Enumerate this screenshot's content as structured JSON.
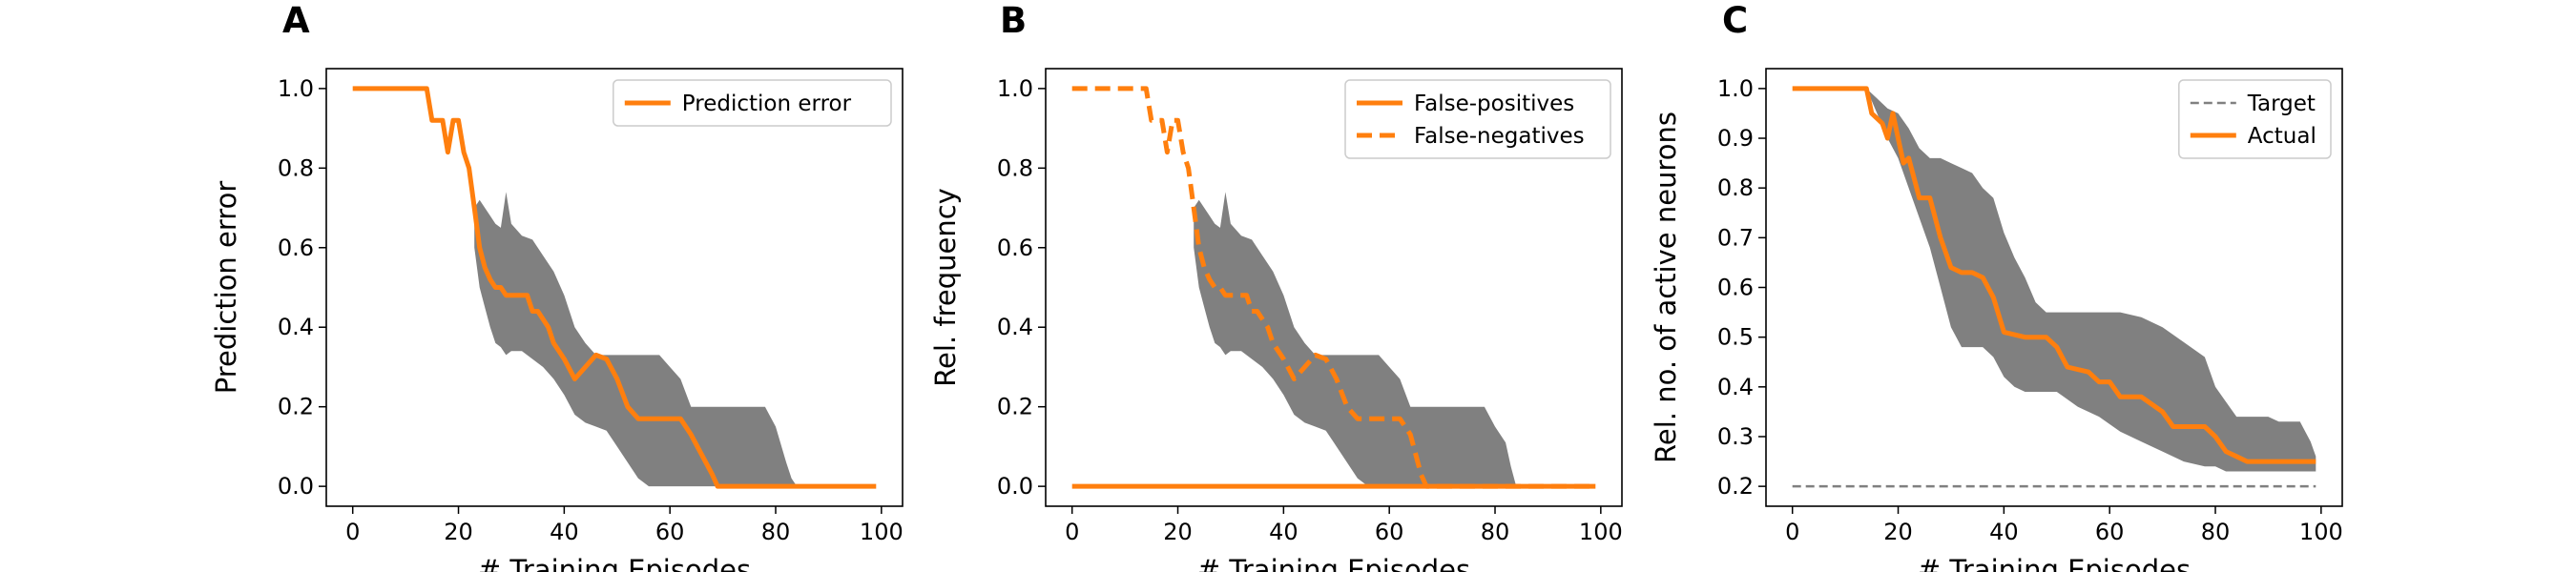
{
  "chart_data": [
    {
      "panel": "A",
      "type": "line",
      "xlabel": "# Training Episodes",
      "ylabel": "Prediction error",
      "xlim": [
        -5,
        104
      ],
      "ylim": [
        -0.05,
        1.05
      ],
      "xticks": [
        0,
        20,
        40,
        60,
        80,
        100
      ],
      "yticks": [
        0.0,
        0.2,
        0.4,
        0.6,
        0.8,
        1.0
      ],
      "ytick_format": 1,
      "legend_position": "upper right",
      "series": [
        {
          "name": "Prediction error",
          "color": "#ff7f0e",
          "dash": "solid",
          "x": [
            0,
            14,
            15,
            17,
            18,
            19,
            20,
            21,
            22,
            23,
            24,
            25,
            26,
            27,
            28,
            29,
            30,
            33,
            34,
            35,
            37,
            38,
            40,
            42,
            44,
            46,
            48,
            50,
            52,
            54,
            60,
            62,
            64,
            66,
            68,
            69,
            70,
            80,
            90,
            99
          ],
          "y": [
            1.0,
            1.0,
            0.92,
            0.92,
            0.84,
            0.92,
            0.92,
            0.84,
            0.8,
            0.7,
            0.6,
            0.55,
            0.52,
            0.5,
            0.5,
            0.48,
            0.48,
            0.48,
            0.44,
            0.44,
            0.4,
            0.36,
            0.32,
            0.27,
            0.3,
            0.33,
            0.32,
            0.27,
            0.2,
            0.17,
            0.17,
            0.17,
            0.13,
            0.08,
            0.03,
            0.0,
            0.0,
            0.0,
            0.0,
            0.0
          ]
        }
      ],
      "bands": [
        {
          "color": "#808080",
          "x": [
            23,
            24,
            25,
            26,
            27,
            28,
            29,
            30,
            32,
            34,
            36,
            38,
            40,
            42,
            44,
            46,
            48,
            50,
            52,
            54,
            56,
            58,
            60,
            62,
            64,
            66,
            68,
            70,
            72,
            74,
            76,
            78,
            80,
            82,
            83,
            84
          ],
          "upper": [
            0.7,
            0.72,
            0.7,
            0.68,
            0.66,
            0.65,
            0.74,
            0.66,
            0.63,
            0.62,
            0.58,
            0.54,
            0.48,
            0.4,
            0.36,
            0.33,
            0.33,
            0.33,
            0.33,
            0.33,
            0.33,
            0.33,
            0.3,
            0.27,
            0.2,
            0.2,
            0.2,
            0.2,
            0.2,
            0.2,
            0.2,
            0.2,
            0.15,
            0.06,
            0.02,
            0.0
          ],
          "lower": [
            0.6,
            0.5,
            0.45,
            0.4,
            0.36,
            0.35,
            0.33,
            0.34,
            0.34,
            0.32,
            0.3,
            0.27,
            0.23,
            0.18,
            0.16,
            0.15,
            0.14,
            0.1,
            0.06,
            0.02,
            0.0,
            0.0,
            0.0,
            0.0,
            0.0,
            0.0,
            0.0,
            0.0,
            0.0,
            0.0,
            0.0,
            0.0,
            0.0,
            0.0,
            0.0,
            0.0
          ]
        }
      ]
    },
    {
      "panel": "B",
      "type": "line",
      "xlabel": "# Training Episodes",
      "ylabel": "Rel. frequency",
      "xlim": [
        -5,
        104
      ],
      "ylim": [
        -0.05,
        1.05
      ],
      "xticks": [
        0,
        20,
        40,
        60,
        80,
        100
      ],
      "yticks": [
        0.0,
        0.2,
        0.4,
        0.6,
        0.8,
        1.0
      ],
      "ytick_format": 1,
      "legend_position": "upper right",
      "series": [
        {
          "name": "False-positives",
          "color": "#ff7f0e",
          "dash": "solid",
          "x": [
            0,
            20,
            40,
            60,
            80,
            99
          ],
          "y": [
            0.0,
            0.0,
            0.0,
            0.0,
            0.0,
            0.0
          ]
        },
        {
          "name": "False-negatives",
          "color": "#ff7f0e",
          "dash": "dashed",
          "x": [
            0,
            14,
            15,
            17,
            18,
            19,
            20,
            21,
            22,
            23,
            24,
            25,
            26,
            27,
            28,
            29,
            30,
            33,
            34,
            35,
            37,
            38,
            40,
            42,
            44,
            46,
            48,
            50,
            52,
            54,
            60,
            62,
            64,
            65,
            66,
            67,
            70,
            80,
            90,
            99
          ],
          "y": [
            1.0,
            1.0,
            0.92,
            0.92,
            0.84,
            0.92,
            0.92,
            0.84,
            0.8,
            0.7,
            0.6,
            0.55,
            0.52,
            0.5,
            0.5,
            0.48,
            0.48,
            0.48,
            0.44,
            0.44,
            0.4,
            0.36,
            0.32,
            0.27,
            0.3,
            0.33,
            0.32,
            0.27,
            0.2,
            0.17,
            0.17,
            0.17,
            0.13,
            0.08,
            0.03,
            0.0,
            0.0,
            0.0,
            0.0,
            0.0
          ]
        }
      ],
      "bands": [
        {
          "color": "#808080",
          "x": [
            23,
            24,
            25,
            26,
            27,
            28,
            29,
            30,
            32,
            34,
            36,
            38,
            40,
            42,
            44,
            46,
            48,
            50,
            52,
            54,
            56,
            58,
            60,
            62,
            64,
            66,
            68,
            70,
            72,
            74,
            76,
            78,
            80,
            82,
            83,
            84
          ],
          "upper": [
            0.7,
            0.72,
            0.7,
            0.68,
            0.66,
            0.65,
            0.74,
            0.66,
            0.63,
            0.62,
            0.58,
            0.54,
            0.48,
            0.4,
            0.36,
            0.33,
            0.33,
            0.33,
            0.33,
            0.33,
            0.33,
            0.33,
            0.3,
            0.27,
            0.2,
            0.2,
            0.2,
            0.2,
            0.2,
            0.2,
            0.2,
            0.2,
            0.15,
            0.11,
            0.05,
            0.0
          ],
          "lower": [
            0.6,
            0.5,
            0.45,
            0.4,
            0.36,
            0.35,
            0.33,
            0.34,
            0.34,
            0.32,
            0.3,
            0.27,
            0.23,
            0.18,
            0.16,
            0.15,
            0.14,
            0.1,
            0.06,
            0.02,
            0.0,
            0.0,
            0.0,
            0.0,
            0.0,
            0.0,
            0.0,
            0.0,
            0.0,
            0.0,
            0.0,
            0.0,
            0.0,
            0.0,
            0.0,
            0.0
          ]
        }
      ]
    },
    {
      "panel": "C",
      "type": "line",
      "xlabel": "# Training Episodes",
      "ylabel": "Rel. no. of active neurons",
      "xlim": [
        -5,
        104
      ],
      "ylim": [
        0.16,
        1.04
      ],
      "xticks": [
        0,
        20,
        40,
        60,
        80,
        100
      ],
      "yticks": [
        0.2,
        0.3,
        0.4,
        0.5,
        0.6,
        0.7,
        0.8,
        0.9,
        1.0
      ],
      "ytick_format": 1,
      "legend_position": "upper right",
      "series": [
        {
          "name": "Target",
          "color": "#808080",
          "dash": "dashed",
          "x": [
            0,
            99
          ],
          "y": [
            0.2,
            0.2
          ]
        },
        {
          "name": "Actual",
          "color": "#ff7f0e",
          "dash": "solid",
          "x": [
            0,
            14,
            15,
            17,
            18,
            19,
            20,
            21,
            22,
            23,
            24,
            26,
            28,
            30,
            32,
            34,
            36,
            38,
            40,
            44,
            48,
            50,
            52,
            56,
            58,
            60,
            62,
            64,
            66,
            70,
            72,
            76,
            78,
            80,
            82,
            84,
            86,
            88,
            92,
            99
          ],
          "y": [
            1.0,
            1.0,
            0.95,
            0.93,
            0.9,
            0.95,
            0.9,
            0.85,
            0.86,
            0.82,
            0.78,
            0.78,
            0.7,
            0.64,
            0.63,
            0.63,
            0.62,
            0.58,
            0.51,
            0.5,
            0.5,
            0.48,
            0.44,
            0.43,
            0.41,
            0.41,
            0.38,
            0.38,
            0.38,
            0.35,
            0.32,
            0.32,
            0.32,
            0.3,
            0.27,
            0.26,
            0.25,
            0.25,
            0.25,
            0.25
          ]
        }
      ],
      "bands": [
        {
          "color": "#808080",
          "x": [
            14,
            16,
            18,
            20,
            22,
            24,
            26,
            28,
            30,
            32,
            34,
            36,
            38,
            40,
            42,
            44,
            46,
            48,
            50,
            54,
            58,
            62,
            66,
            70,
            74,
            78,
            80,
            82,
            84,
            86,
            88,
            90,
            92,
            94,
            96,
            98,
            99
          ],
          "upper": [
            1.0,
            0.98,
            0.96,
            0.95,
            0.92,
            0.88,
            0.86,
            0.86,
            0.85,
            0.84,
            0.83,
            0.8,
            0.78,
            0.71,
            0.66,
            0.62,
            0.57,
            0.55,
            0.55,
            0.55,
            0.55,
            0.55,
            0.54,
            0.52,
            0.49,
            0.46,
            0.4,
            0.37,
            0.34,
            0.34,
            0.34,
            0.34,
            0.33,
            0.33,
            0.33,
            0.29,
            0.26
          ],
          "lower": [
            1.0,
            0.95,
            0.9,
            0.86,
            0.8,
            0.74,
            0.68,
            0.6,
            0.52,
            0.48,
            0.48,
            0.48,
            0.46,
            0.42,
            0.4,
            0.39,
            0.39,
            0.39,
            0.39,
            0.36,
            0.34,
            0.31,
            0.29,
            0.27,
            0.25,
            0.24,
            0.24,
            0.23,
            0.23,
            0.23,
            0.23,
            0.23,
            0.23,
            0.23,
            0.23,
            0.23,
            0.23
          ]
        }
      ]
    }
  ]
}
